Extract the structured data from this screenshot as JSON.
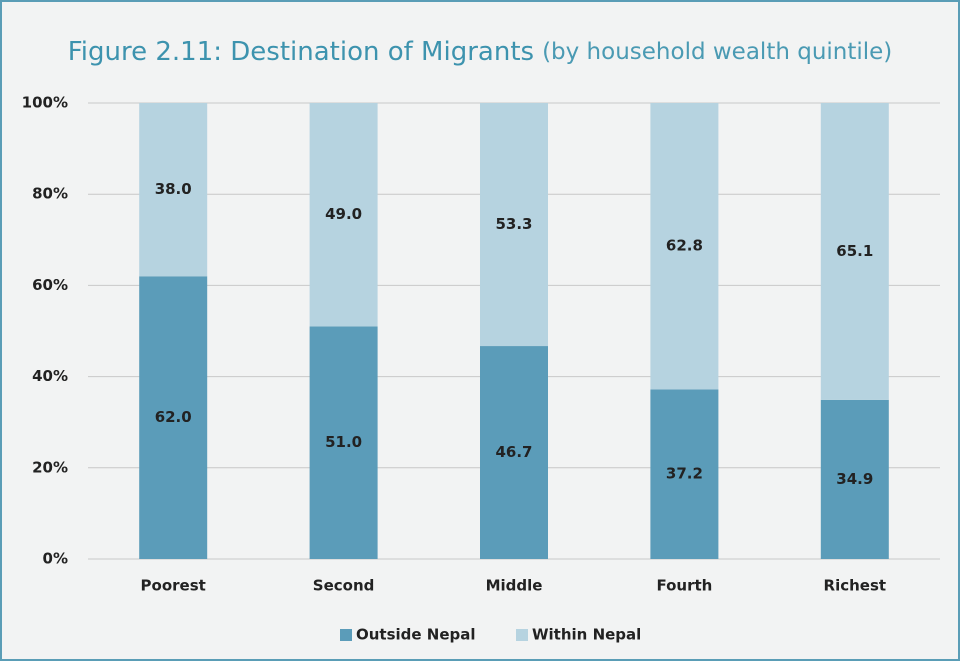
{
  "chart_data": {
    "type": "stacked_bar",
    "title": "Figure 2.11: Destination of Migrants",
    "subtitle": "(by household wealth quintile)",
    "categories": [
      "Poorest",
      "Second",
      "Middle",
      "Fourth",
      "Richest"
    ],
    "series": [
      {
        "name": "Outside Nepal",
        "color": "#5b9cb9",
        "values": [
          62.0,
          51.0,
          46.7,
          37.2,
          34.9
        ],
        "value_labels": [
          "62.0",
          "51.0",
          "46.7",
          "37.2",
          "34.9"
        ]
      },
      {
        "name": "Within Nepal",
        "color": "#b6d3e0",
        "values": [
          38.0,
          49.0,
          53.3,
          62.8,
          65.1
        ],
        "value_labels": [
          "38.0",
          "49.0",
          "53.3",
          "62.8",
          "65.1"
        ]
      }
    ],
    "ylim": [
      0,
      100
    ],
    "yticks": [
      {
        "value": 0,
        "label": "0%"
      },
      {
        "value": 20,
        "label": "20%"
      },
      {
        "value": 40,
        "label": "40%"
      },
      {
        "value": 60,
        "label": "60%"
      },
      {
        "value": 80,
        "label": "80%"
      },
      {
        "value": 100,
        "label": "100%"
      }
    ],
    "grid": true,
    "legend": "bottom"
  }
}
